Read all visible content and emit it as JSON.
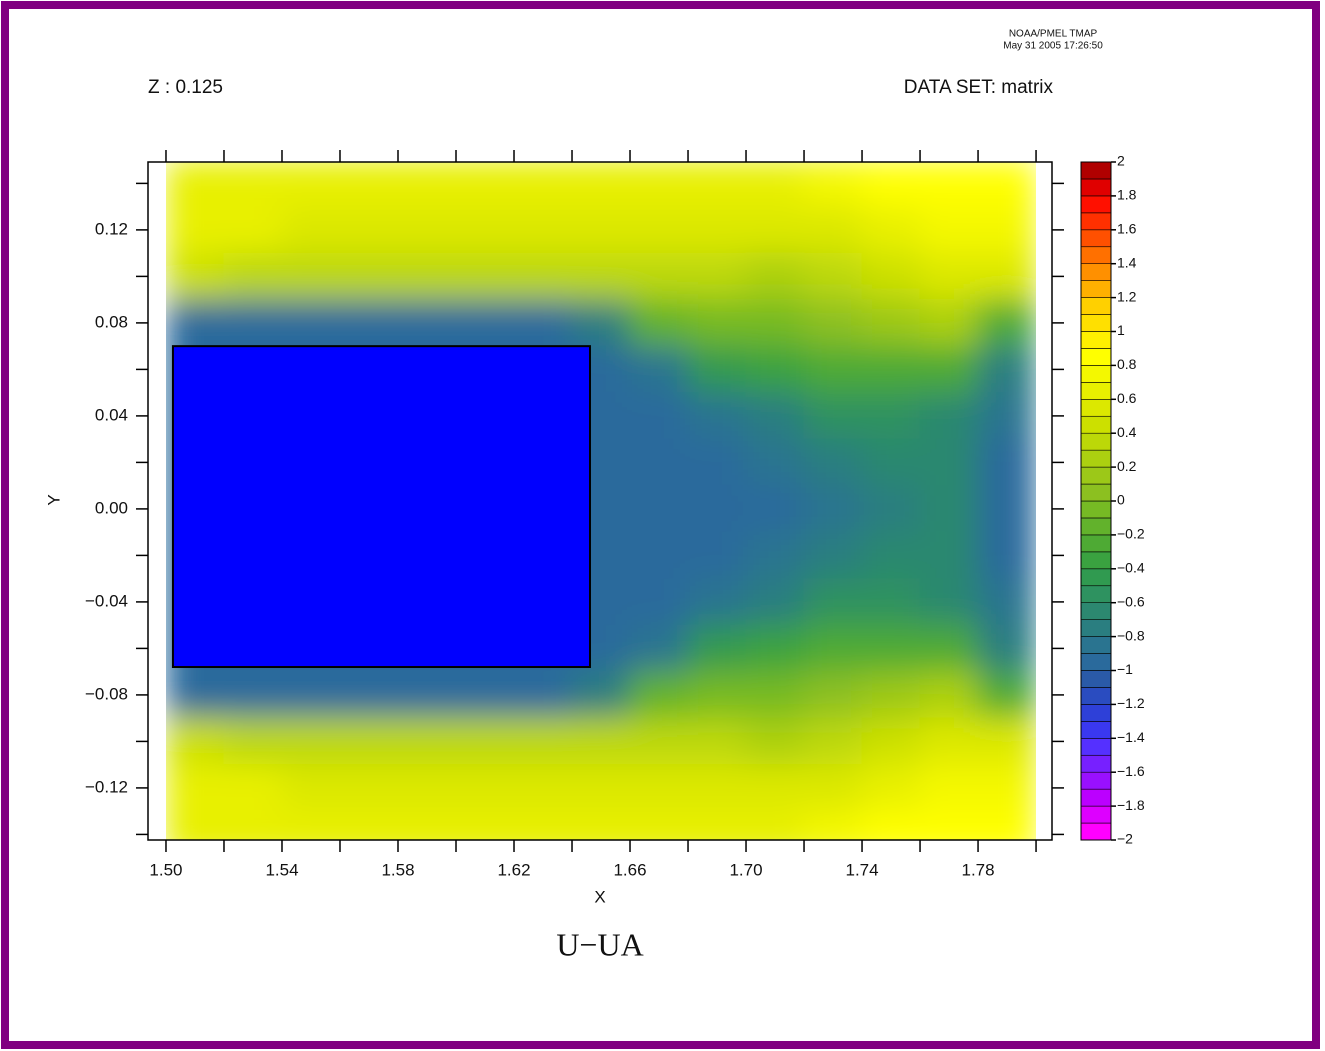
{
  "chart_data": {
    "type": "heatmap",
    "title": "U−UA",
    "subtitle_left": "Z : 0.125",
    "subtitle_right": "DATA SET: matrix",
    "credit": [
      "NOAA/PMEL TMAP",
      "May 31 2005 17:26:50"
    ],
    "xlabel": "X",
    "ylabel": "Y",
    "xlim": [
      1.4938,
      1.8055
    ],
    "ylim": [
      -0.1424,
      0.1492
    ],
    "xticks": [
      {
        "value": 1.5,
        "label": "1.50"
      },
      1.54,
      1.58,
      1.62,
      1.66,
      {
        "value": 1.7,
        "label": "1.70"
      },
      1.74,
      1.78
    ],
    "xminorticks": [
      1.52,
      1.56,
      1.6,
      1.64,
      1.68,
      1.72,
      1.76,
      1.8
    ],
    "yticks": [
      {
        "value": -0.12,
        "label": "−0.12"
      },
      {
        "value": -0.08,
        "label": "−0.08"
      },
      {
        "value": -0.04,
        "label": "−0.04"
      },
      {
        "value": 0,
        "label": "0.00"
      },
      0.04,
      0.08,
      0.12
    ],
    "yminorticks": [
      -0.14,
      -0.1,
      -0.06,
      -0.02,
      0.02,
      0.06,
      0.1,
      0.14
    ],
    "x": [
      1.51,
      1.53,
      1.55,
      1.57,
      1.59,
      1.61,
      1.63,
      1.65,
      1.67,
      1.69,
      1.71,
      1.73,
      1.75,
      1.77,
      1.79
    ],
    "y": [
      0.14,
      0.12,
      0.1,
      0.08,
      0.06,
      0.04,
      0.02,
      0,
      -0.02,
      -0.04,
      -0.06,
      -0.08,
      -0.1,
      -0.12,
      -0.14
    ],
    "z": [
      [
        0.6,
        0.6,
        0.6,
        0.6,
        0.6,
        0.6,
        0.6,
        0.6,
        0.6,
        0.6,
        0.6,
        0.7,
        0.8,
        0.8,
        0.8
      ],
      [
        0.6,
        0.6,
        0.55,
        0.55,
        0.55,
        0.55,
        0.55,
        0.55,
        0.55,
        0.55,
        0.5,
        0.55,
        0.6,
        0.7,
        0.7
      ],
      [
        0.4,
        0.35,
        0.3,
        0.3,
        0.3,
        0.3,
        0.3,
        0.3,
        0.3,
        0.3,
        0.2,
        0.3,
        0.4,
        0.5,
        0.5
      ],
      [
        -1.0,
        -1.0,
        -1.0,
        -1.0,
        -1.0,
        -1.0,
        -1.0,
        -0.8,
        -0.2,
        -0.1,
        -0.1,
        0.0,
        0.1,
        0.2,
        -0.3
      ],
      [
        -1.0,
        -1.0,
        -1.0,
        -1.0,
        -1.0,
        -1.0,
        -1.0,
        -1.0,
        -0.9,
        -0.5,
        -0.4,
        -0.3,
        -0.3,
        -0.3,
        -0.8
      ],
      [
        -1.0,
        -1.0,
        -1.0,
        -1.0,
        -1.0,
        -1.0,
        -1.0,
        -1.0,
        -1.0,
        -0.9,
        -0.8,
        -0.6,
        -0.6,
        -0.7,
        -0.9
      ],
      [
        -1.0,
        -1.0,
        -1.0,
        -1.0,
        -1.0,
        -1.0,
        -1.0,
        -1.0,
        -1.0,
        -1.0,
        -0.9,
        -0.8,
        -0.7,
        -0.7,
        -0.95
      ],
      [
        -1.0,
        -1.0,
        -1.0,
        -1.0,
        -1.0,
        -1.0,
        -1.0,
        -1.0,
        -1.0,
        -1.0,
        -0.95,
        -0.85,
        -0.75,
        -0.65,
        -0.95
      ],
      [
        -1.0,
        -1.0,
        -1.0,
        -1.0,
        -1.0,
        -1.0,
        -1.0,
        -1.0,
        -1.0,
        -1.0,
        -0.9,
        -0.8,
        -0.7,
        -0.7,
        -0.95
      ],
      [
        -1.0,
        -1.0,
        -1.0,
        -1.0,
        -1.0,
        -1.0,
        -1.0,
        -1.0,
        -1.0,
        -0.9,
        -0.8,
        -0.6,
        -0.6,
        -0.7,
        -0.9
      ],
      [
        -1.0,
        -1.0,
        -1.0,
        -1.0,
        -1.0,
        -1.0,
        -1.0,
        -1.0,
        -0.9,
        -0.5,
        -0.4,
        -0.3,
        -0.3,
        -0.3,
        -0.8
      ],
      [
        -1.0,
        -1.0,
        -1.0,
        -1.0,
        -1.0,
        -1.0,
        -1.0,
        -0.8,
        -0.2,
        -0.1,
        -0.1,
        0.0,
        0.1,
        0.2,
        -0.3
      ],
      [
        0.4,
        0.35,
        0.3,
        0.3,
        0.3,
        0.3,
        0.3,
        0.3,
        0.3,
        0.3,
        0.2,
        0.3,
        0.4,
        0.5,
        0.5
      ],
      [
        0.6,
        0.6,
        0.55,
        0.55,
        0.55,
        0.55,
        0.55,
        0.55,
        0.55,
        0.55,
        0.5,
        0.55,
        0.6,
        0.7,
        0.7
      ],
      [
        0.6,
        0.6,
        0.6,
        0.6,
        0.6,
        0.6,
        0.6,
        0.6,
        0.6,
        0.6,
        0.6,
        0.7,
        0.8,
        0.8,
        0.8
      ]
    ],
    "box": {
      "x": [
        1.5024,
        1.6462
      ],
      "y": [
        -0.068,
        0.07
      ],
      "color": "#0000ff"
    },
    "colorbar": {
      "lim": [
        -2,
        2
      ],
      "colors": [
        "#ff00ff",
        "#dd00ff",
        "#bb00ff",
        "#9910ff",
        "#7720ff",
        "#5530ff",
        "#3a38f0",
        "#2e40d8",
        "#2a4cc0",
        "#2a5aa8",
        "#2a6a9c",
        "#2a7490",
        "#2a7e80",
        "#2c8870",
        "#2e9260",
        "#309a50",
        "#3aa240",
        "#4eaa34",
        "#62b22c",
        "#76ba24",
        "#8cc020",
        "#9cc818",
        "#acd010",
        "#bcd808",
        "#cce000",
        "#dce800",
        "#e8f000",
        "#f4f800",
        "#ffff00",
        "#fff000",
        "#ffe000",
        "#ffd000",
        "#ffb000",
        "#ff9000",
        "#ff7000",
        "#ff5000",
        "#ff3000",
        "#ff1000",
        "#e00000",
        "#b00000"
      ],
      "ticks": [
        2,
        1.8,
        1.6,
        1.4,
        1.2,
        1,
        0.8,
        0.6,
        0.4,
        0.2,
        0,
        {
          "value": -0.2,
          "label": "−0.2"
        },
        {
          "value": -0.4,
          "label": "−0.4"
        },
        {
          "value": -0.6,
          "label": "−0.6"
        },
        {
          "value": -0.8,
          "label": "−0.8"
        },
        {
          "value": -1,
          "label": "−1"
        },
        {
          "value": -1.2,
          "label": "−1.2"
        },
        {
          "value": -1.4,
          "label": "−1.4"
        },
        {
          "value": -1.6,
          "label": "−1.6"
        },
        {
          "value": -1.8,
          "label": "−1.8"
        },
        {
          "value": -2,
          "label": "−2"
        }
      ]
    }
  }
}
